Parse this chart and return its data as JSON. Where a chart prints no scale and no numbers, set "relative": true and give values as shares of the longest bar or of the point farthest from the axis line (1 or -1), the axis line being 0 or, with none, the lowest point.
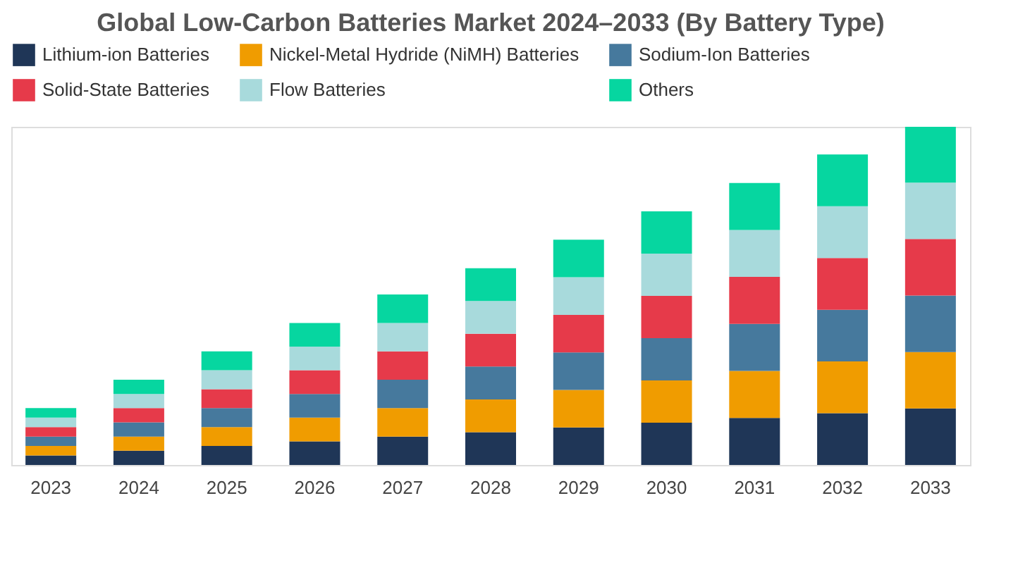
{
  "chart_data": {
    "type": "bar",
    "title": "Global Low-Carbon Batteries Market 2024–2033 (By Battery Type)",
    "categories": [
      "2023",
      "2024",
      "2025",
      "2026",
      "2027",
      "2028",
      "2029",
      "2030",
      "2031",
      "2032",
      "2033"
    ],
    "stacked": true,
    "relative": true,
    "legend": "top",
    "grid": false,
    "series": [
      {
        "name": "Lithium-ion Batteries",
        "color": "#1f3657",
        "values": [
          0.028,
          0.042,
          0.056,
          0.07,
          0.084,
          0.097,
          0.111,
          0.125,
          0.139,
          0.153,
          0.167
        ]
      },
      {
        "name": "Nickel-Metal Hydride (NiMH) Batteries",
        "color": "#f09c00",
        "values": [
          0.028,
          0.042,
          0.056,
          0.07,
          0.084,
          0.097,
          0.111,
          0.125,
          0.139,
          0.153,
          0.167
        ]
      },
      {
        "name": "Sodium-Ion Batteries",
        "color": "#46799d",
        "values": [
          0.028,
          0.042,
          0.056,
          0.07,
          0.084,
          0.097,
          0.111,
          0.125,
          0.139,
          0.153,
          0.167
        ]
      },
      {
        "name": "Solid-State Batteries",
        "color": "#e63a4a",
        "values": [
          0.028,
          0.042,
          0.056,
          0.07,
          0.084,
          0.097,
          0.111,
          0.125,
          0.139,
          0.153,
          0.167
        ]
      },
      {
        "name": "Flow Batteries",
        "color": "#a8dadc",
        "values": [
          0.028,
          0.042,
          0.056,
          0.07,
          0.084,
          0.097,
          0.111,
          0.125,
          0.139,
          0.153,
          0.167
        ]
      },
      {
        "name": "Others",
        "color": "#06d6a0",
        "values": [
          0.028,
          0.042,
          0.056,
          0.07,
          0.084,
          0.097,
          0.111,
          0.125,
          0.139,
          0.153,
          0.165
        ]
      }
    ]
  }
}
